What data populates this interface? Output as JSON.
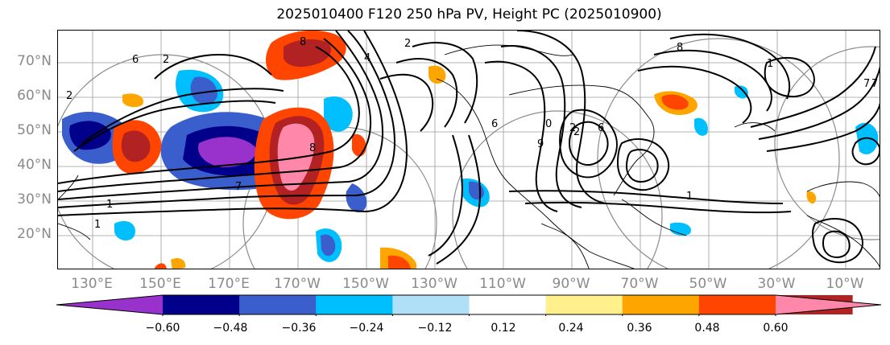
{
  "title": "2025010400 F120 250 hPa PV, Height PC (2025010900)",
  "map": {
    "lat_labels": [
      "70°N",
      "60°N",
      "50°N",
      "40°N",
      "30°N",
      "20°N"
    ],
    "lon_labels": [
      "130°E",
      "150°E",
      "170°E",
      "170°W",
      "150°W",
      "130°W",
      "110°W",
      "90°W",
      "70°W",
      "50°W",
      "30°W",
      "10°W"
    ],
    "contour_labels": [
      "2",
      "6",
      "8",
      "2",
      "7",
      "1",
      "4",
      "2",
      "8",
      "6",
      "1",
      "2",
      "7",
      "1",
      "0",
      "9",
      "2",
      "6",
      "7",
      "1",
      "8"
    ]
  },
  "colorbar": {
    "tick_labels": [
      "−0.60",
      "−0.48",
      "−0.36",
      "−0.24",
      "−0.12",
      "0.12",
      "0.24",
      "0.36",
      "0.48",
      "0.60"
    ],
    "colors": [
      "#9932cc",
      "#00008b",
      "#3a5fcd",
      "#00bfff",
      "#b0e0f8",
      "#ffffff",
      "#fff08c",
      "#ffa500",
      "#ff4500",
      "#b22222",
      "#ff88aa"
    ]
  }
}
